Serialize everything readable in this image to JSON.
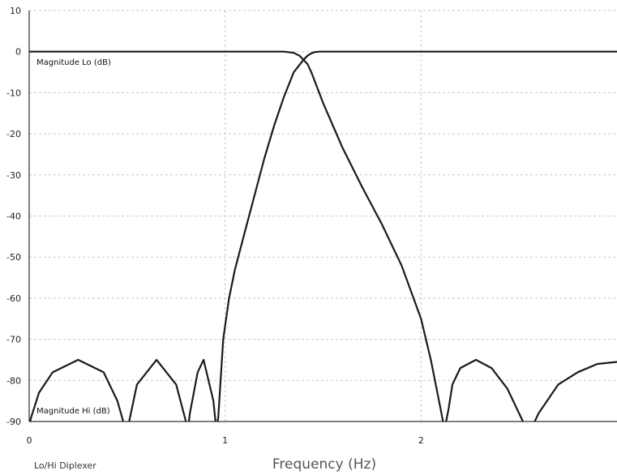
{
  "chart_data": {
    "type": "line",
    "title": "",
    "xlabel": "Frequency (Hz)",
    "ylabel": "",
    "footer_label": "Lo/Hi Diplexer",
    "xlim": [
      0,
      3
    ],
    "ylim": [
      -90,
      10
    ],
    "x_ticks": [
      0,
      1,
      2
    ],
    "y_ticks": [
      10,
      0,
      -10,
      -20,
      -30,
      -40,
      -50,
      -60,
      -70,
      -80,
      -90
    ],
    "grid": true,
    "series": [
      {
        "name": "Magnitude Lo (dB)",
        "x": [
          0,
          0.5,
          1.0,
          1.2,
          1.3,
          1.35,
          1.38,
          1.4,
          1.42,
          1.44,
          1.46,
          1.48,
          1.5,
          1.55,
          1.6,
          1.7,
          1.8,
          1.9,
          2.0,
          2.05,
          2.1,
          2.12,
          2.14,
          2.16,
          2.2,
          2.28,
          2.36,
          2.44,
          2.5,
          2.54,
          2.56,
          2.6,
          2.7,
          2.8,
          2.9,
          3.0
        ],
        "y": [
          0,
          0,
          0,
          0,
          0,
          -0.3,
          -1.0,
          -2.0,
          -3.0,
          -5.0,
          -7.5,
          -10.0,
          -12.5,
          -18.0,
          -23.5,
          -33.0,
          -42.0,
          -52.0,
          -65.0,
          -75.0,
          -87.0,
          -92.0,
          -87.0,
          -81.0,
          -77.0,
          -75.0,
          -77.0,
          -82.0,
          -88.0,
          -92.0,
          -92.0,
          -88.0,
          -81.0,
          -78.0,
          -76.0,
          -75.5
        ]
      },
      {
        "name": "Magnitude Hi (dB)",
        "x": [
          0,
          0.01,
          0.05,
          0.12,
          0.25,
          0.38,
          0.45,
          0.48,
          0.49,
          0.51,
          0.55,
          0.65,
          0.75,
          0.8,
          0.81,
          0.82,
          0.86,
          0.89,
          0.94,
          0.955,
          0.965,
          0.99,
          1.02,
          1.05,
          1.1,
          1.15,
          1.2,
          1.25,
          1.3,
          1.35,
          1.4,
          1.42,
          1.44,
          1.46,
          1.48,
          1.5,
          1.55,
          1.6,
          2.0,
          3.0
        ],
        "y": [
          -91,
          -89,
          -83,
          -78,
          -75,
          -78,
          -85,
          -90,
          -92,
          -90,
          -81,
          -75,
          -81,
          -90,
          -92,
          -88,
          -78,
          -75,
          -85,
          -92,
          -89,
          -70,
          -60,
          -53,
          -44,
          -35,
          -26,
          -18,
          -11,
          -5.0,
          -2.0,
          -1.0,
          -0.4,
          -0.1,
          0,
          0,
          0,
          0,
          0,
          0
        ]
      }
    ]
  }
}
